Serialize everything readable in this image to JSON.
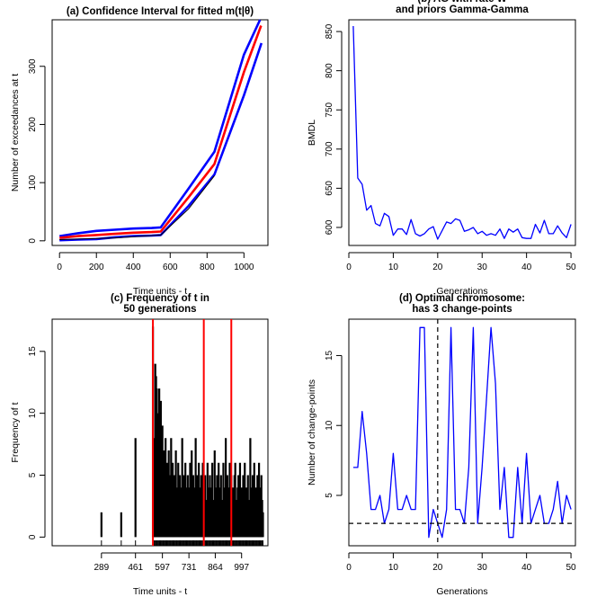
{
  "chart_data": [
    {
      "id": "a",
      "type": "line",
      "title": "(a) Confidence Interval for fitted m(t|θ)",
      "xlabel": "Time units - t",
      "ylabel": "Number of exceedances at t",
      "xlim": [
        -40,
        1130
      ],
      "ylim": [
        -8,
        380
      ],
      "xticks": [
        0,
        200,
        400,
        600,
        800,
        1000
      ],
      "yticks": [
        0,
        100,
        200,
        300
      ],
      "series": [
        {
          "color": "#0000ff",
          "points": [
            [
              0,
              8
            ],
            [
              100,
              13
            ],
            [
              200,
              17
            ],
            [
              300,
              19
            ],
            [
              400,
              21
            ],
            [
              500,
              22
            ],
            [
              549,
              23
            ],
            [
              700,
              90
            ],
            [
              840,
              153
            ],
            [
              1000,
              320
            ],
            [
              1087,
              380
            ]
          ]
        },
        {
          "color": "#ff0000",
          "points": [
            [
              0,
              5
            ],
            [
              100,
              8
            ],
            [
              200,
              10
            ],
            [
              300,
              12
            ],
            [
              400,
              14
            ],
            [
              500,
              15
            ],
            [
              549,
              16
            ],
            [
              700,
              75
            ],
            [
              840,
              132
            ],
            [
              1000,
              290
            ],
            [
              1093,
              370
            ]
          ]
        },
        {
          "color": "#0000ff",
          "points": [
            [
              0,
              1
            ],
            [
              100,
              2
            ],
            [
              200,
              3
            ],
            [
              300,
              6
            ],
            [
              400,
              8
            ],
            [
              500,
              9
            ],
            [
              549,
              10
            ],
            [
              700,
              60
            ],
            [
              840,
              114
            ],
            [
              1000,
              250
            ],
            [
              1095,
              340
            ]
          ]
        },
        {
          "color": "#000000",
          "points": [
            [
              0,
              2
            ],
            [
              100,
              3
            ],
            [
              200,
              4
            ],
            [
              300,
              5
            ],
            [
              400,
              7
            ],
            [
              500,
              9
            ],
            [
              549,
              10
            ],
            [
              700,
              55
            ],
            [
              840,
              112
            ]
          ]
        }
      ]
    },
    {
      "id": "b",
      "type": "line",
      "title": "(b) AG with rate W\nand priors Gamma-Gamma",
      "xlabel": "Generations",
      "ylabel": "BMDL",
      "xlim": [
        0,
        51
      ],
      "ylim": [
        577,
        865
      ],
      "xticks": [
        0,
        10,
        20,
        30,
        40,
        50
      ],
      "yticks": [
        600,
        650,
        700,
        750,
        800,
        850
      ],
      "series": [
        {
          "color": "#0000ff",
          "x": [
            1,
            2,
            3,
            4,
            5,
            6,
            7,
            8,
            9,
            10,
            11,
            12,
            13,
            14,
            15,
            16,
            17,
            18,
            19,
            20,
            21,
            22,
            23,
            24,
            25,
            26,
            27,
            28,
            29,
            30,
            31,
            32,
            33,
            34,
            35,
            36,
            37,
            38,
            39,
            40,
            41,
            42,
            43,
            44,
            45,
            46,
            47,
            48,
            49,
            50
          ],
          "values": [
            857,
            663,
            655,
            622,
            628,
            605,
            602,
            618,
            614,
            590,
            598,
            598,
            591,
            610,
            592,
            589,
            592,
            598,
            601,
            585,
            596,
            607,
            605,
            611,
            609,
            595,
            597,
            600,
            592,
            595,
            590,
            592,
            590,
            598,
            586,
            598,
            594,
            598,
            587,
            586,
            586,
            604,
            593,
            609,
            592,
            592,
            602,
            593,
            587,
            604
          ]
        }
      ]
    },
    {
      "id": "c",
      "type": "bar",
      "title": "(c) Frequency of t in\n50 generations",
      "xlabel": "Time units - t",
      "ylabel": "Frequency of t",
      "xlim": [
        40,
        1130
      ],
      "ylim": [
        -0.7,
        17.6
      ],
      "xticks": [
        289,
        461,
        597,
        731,
        864,
        997
      ],
      "yticks": [
        0,
        5,
        10,
        15
      ],
      "vlines": [
        549,
        806,
        945
      ],
      "vline_color": "#ff0000",
      "sparse_t": [
        289,
        389,
        461
      ],
      "sparse_freq": [
        2,
        2,
        8
      ],
      "dense_start": 549,
      "dense_step": 4,
      "dense_freq": [
        17,
        3,
        8,
        14,
        13,
        12,
        10,
        8,
        12,
        7,
        11,
        5,
        9,
        6,
        7,
        4,
        8,
        5,
        6,
        3,
        7,
        2,
        5,
        8,
        4,
        6,
        3,
        5,
        2,
        7,
        4,
        3,
        6,
        2,
        5,
        4,
        3,
        8,
        2,
        5,
        3,
        6,
        4,
        2,
        5,
        3,
        4,
        6,
        2,
        7,
        3,
        5,
        2,
        4,
        8,
        3,
        5,
        2,
        6,
        4,
        2,
        5,
        3,
        6,
        2,
        4,
        5,
        3,
        2,
        6,
        4,
        3,
        5,
        2,
        4,
        6,
        2,
        3,
        7,
        4,
        2,
        5,
        3,
        6,
        2,
        4,
        5,
        3,
        2,
        6,
        4,
        3,
        8,
        2,
        5,
        4,
        3,
        6,
        2,
        5,
        3,
        4,
        2,
        5,
        6,
        3,
        2,
        4,
        5,
        3,
        6,
        2,
        4,
        3,
        5,
        2,
        6,
        3,
        4,
        2,
        5,
        3,
        2,
        8,
        4,
        3,
        5,
        2,
        6,
        3,
        4,
        2,
        5,
        3,
        6,
        2,
        4,
        5,
        3,
        2,
        6,
        4,
        3,
        5,
        2,
        4,
        6,
        3,
        2,
        5,
        4,
        3,
        6,
        2,
        5,
        3
      ]
    },
    {
      "id": "d",
      "type": "line",
      "title": "(d) Optimal chromosome:\nhas 3 change-points",
      "xlabel": "Generations",
      "ylabel": "Number of change-points",
      "xlim": [
        0,
        51
      ],
      "ylim": [
        1.4,
        17.6
      ],
      "xticks": [
        0,
        10,
        20,
        30,
        40,
        50
      ],
      "yticks": [
        5,
        10,
        15
      ],
      "hline": 3,
      "vline": 20,
      "series": [
        {
          "color": "#0000ff",
          "x": [
            1,
            2,
            3,
            4,
            5,
            6,
            7,
            8,
            9,
            10,
            11,
            12,
            13,
            14,
            15,
            16,
            17,
            18,
            19,
            20,
            21,
            22,
            23,
            24,
            25,
            26,
            27,
            28,
            29,
            30,
            31,
            32,
            33,
            34,
            35,
            36,
            37,
            38,
            39,
            40,
            41,
            42,
            43,
            44,
            45,
            46,
            47,
            48,
            49,
            50
          ],
          "values": [
            7,
            7,
            11,
            8,
            4,
            4,
            5,
            3,
            4,
            8,
            4,
            4,
            5,
            4,
            4,
            17,
            17,
            2,
            4,
            3,
            2,
            4,
            17,
            4,
            4,
            3,
            7,
            17,
            3,
            7,
            12,
            17,
            13,
            4,
            7,
            2,
            2,
            7,
            3,
            8,
            3,
            4,
            5,
            3,
            3,
            4,
            6,
            3,
            5,
            4
          ]
        }
      ]
    }
  ]
}
